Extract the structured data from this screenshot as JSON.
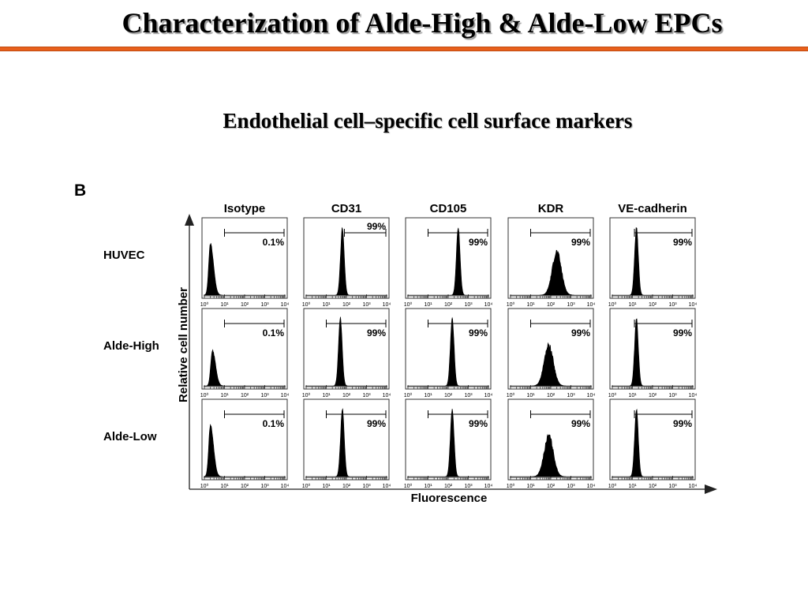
{
  "slide": {
    "title": "Characterization of Alde-High & Alde-Low EPCs",
    "subtitle": "Endothelial cell–specific cell surface markers",
    "accent_color": "#e8601c"
  },
  "chart_data": {
    "type": "histogram_grid",
    "panel_label": "B",
    "columns": [
      "Isotype",
      "CD31",
      "CD105",
      "KDR",
      "VE-cadherin"
    ],
    "rows": [
      "HUVEC",
      "Alde-High",
      "Alde-Low"
    ],
    "ylabel": "Relative cell number",
    "xlabel": "Fluorescence",
    "x_scale": "log",
    "x_ticks": [
      "10⁰",
      "10¹",
      "10²",
      "10³",
      "10⁴"
    ],
    "percentages": [
      [
        "0.1%",
        "99%",
        "99%",
        "99%",
        "99%"
      ],
      [
        "0.1%",
        "99%",
        "99%",
        "99%",
        "99%"
      ],
      [
        "0.1%",
        "99%",
        "99%",
        "99%",
        "99%"
      ]
    ],
    "peak_log_fluorescence": [
      [
        0.3,
        1.8,
        2.5,
        2.3,
        1.2
      ],
      [
        0.4,
        1.7,
        2.2,
        1.9,
        1.2
      ],
      [
        0.3,
        1.8,
        2.2,
        1.9,
        1.2
      ]
    ],
    "gate_start_log": [
      [
        1.0,
        1.9,
        1.0,
        1.0,
        1.1
      ],
      [
        1.0,
        1.0,
        1.0,
        1.0,
        1.1
      ],
      [
        1.0,
        1.0,
        1.0,
        1.0,
        1.1
      ]
    ]
  }
}
